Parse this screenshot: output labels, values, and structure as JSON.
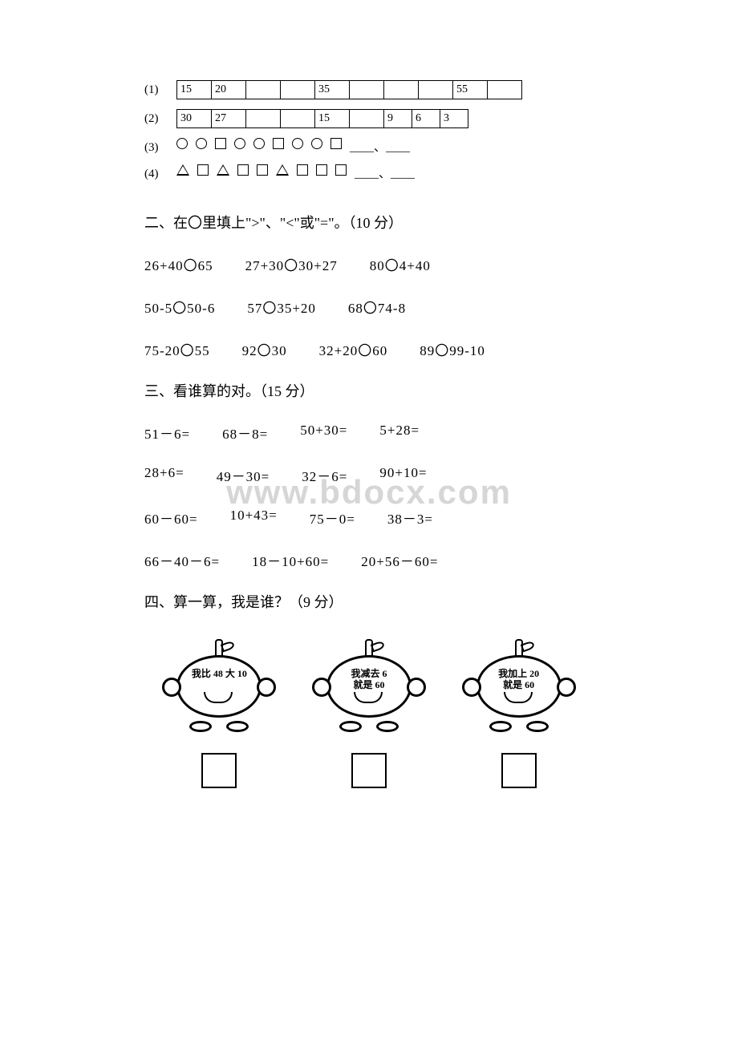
{
  "watermarks": {
    "mid": "www.bdocx.com"
  },
  "section1": {
    "rows": [
      {
        "label": "(1)",
        "cells": [
          "15",
          "20",
          "",
          "",
          "35",
          "",
          "",
          "",
          "55",
          ""
        ]
      },
      {
        "label": "(2)",
        "cells": [
          "30",
          "27",
          "",
          "",
          "15",
          "",
          "9",
          "6",
          "3"
        ]
      }
    ],
    "patternRows": [
      {
        "label": "(3)",
        "shapes": [
          "circle",
          "circle",
          "square",
          "circle",
          "circle",
          "square",
          "circle",
          "circle",
          "square"
        ],
        "tail": "____、____"
      },
      {
        "label": "(4)",
        "shapes": [
          "triangle",
          "square",
          "triangle",
          "square",
          "square",
          "triangle",
          "square",
          "square",
          "square"
        ],
        "tail": "____、____"
      }
    ]
  },
  "section2": {
    "heading": "二、在〇里填上\">\"、\"<\"或\"=\"。（10 分）",
    "lines": [
      [
        "26+40〇65",
        "27+30〇30+27",
        "80〇4+40"
      ],
      [
        "50-5〇50-6",
        "57〇35+20",
        "68〇74-8"
      ],
      [
        "75-20〇55",
        "92〇30",
        "32+20〇60",
        "89〇99-10"
      ]
    ]
  },
  "section3": {
    "heading": "三、看谁算的对。（15 分）",
    "lines": [
      [
        "51－6=",
        "68－8=",
        "50+30=",
        "5+28="
      ],
      [
        "28+6=",
        "49－30=",
        "32－6=",
        "90+10="
      ],
      [
        "60－60=",
        "10+43=",
        "75－0=",
        "38－3="
      ],
      [
        "66－40－6=",
        "18－10+60=",
        "20+56－60="
      ]
    ]
  },
  "section4": {
    "heading": "四、算一算，我是谁？（9 分）",
    "fruits": [
      {
        "line1": "我比 48 大 10",
        "line2": ""
      },
      {
        "line1": "我减去 6",
        "line2": "就是 60"
      },
      {
        "line1": "我加上 20",
        "line2": "就是 60"
      }
    ]
  }
}
